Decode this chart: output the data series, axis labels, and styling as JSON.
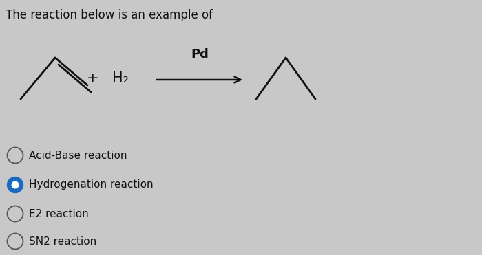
{
  "title": "The reaction below is an example of",
  "title_fontsize": 12,
  "background_color": "#c8c8c8",
  "text_color": "#111111",
  "options": [
    {
      "label": "Acid-Base reaction",
      "selected": false
    },
    {
      "label": "Hydrogenation reaction",
      "selected": true
    },
    {
      "label": "E2 reaction",
      "selected": false
    },
    {
      "label": "SN2 reaction",
      "selected": false
    }
  ],
  "reaction_label": "Pd",
  "reactant_h2": "H₂",
  "plus_sign": "+",
  "option_fontsize": 11,
  "radio_selected_color": "#1a6bbf",
  "radio_unselected_color": "#555555",
  "divider_color": "#aaaaaa",
  "molecule_color": "#111111"
}
